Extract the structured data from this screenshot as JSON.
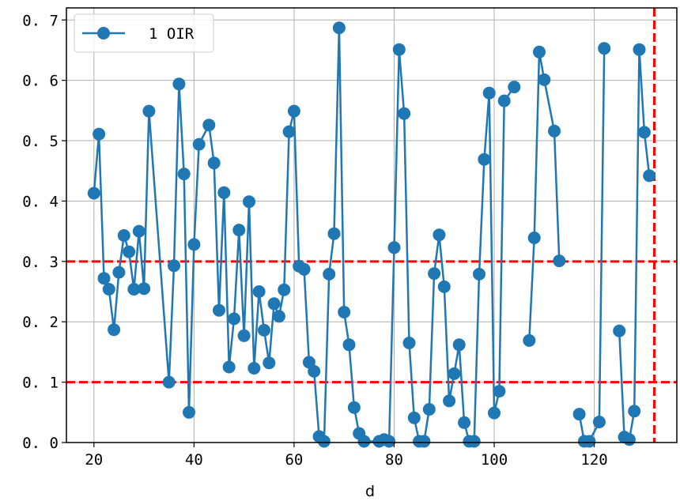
{
  "chart_data": {
    "type": "line",
    "xlabel": "d",
    "ylabel": "",
    "xlim": [
      14.5,
      136.5
    ],
    "ylim": [
      0,
      0.72
    ],
    "xticks": [
      20,
      40,
      60,
      80,
      100,
      120
    ],
    "yticks": [
      0.0,
      0.1,
      0.2,
      0.3,
      0.4,
      0.5,
      0.6,
      0.7
    ],
    "xtick_labels": [
      "20",
      "40",
      "60",
      "80",
      "100",
      "120"
    ],
    "ytick_labels": [
      "0. 0",
      "0. 1",
      "0. 2",
      "0. 3",
      "0. 4",
      "0. 5",
      "0. 6",
      "0. 7"
    ],
    "grid": true,
    "legend": {
      "placement": "top-left",
      "entries": [
        "1 OIR"
      ]
    },
    "colors": {
      "series": "#1f77b4",
      "reference": "#ff0000",
      "grid": "#b0b0b0"
    },
    "series": [
      {
        "name": "1 OIR",
        "segments": [
          {
            "x": [
              20,
              21,
              22,
              23,
              24,
              25,
              26,
              27,
              28,
              29,
              30,
              31,
              35,
              36,
              37,
              38,
              39,
              40,
              41,
              43,
              44,
              45,
              46,
              47,
              48,
              49,
              50,
              51,
              52,
              53,
              54,
              55,
              56,
              57,
              58,
              59,
              60,
              61,
              62,
              63,
              64,
              65,
              66,
              67,
              68,
              69,
              70,
              71,
              72,
              73,
              74,
              77,
              78,
              79,
              80,
              81,
              82,
              83,
              84,
              85,
              86,
              87,
              88,
              89,
              90,
              91,
              92,
              93,
              94,
              95,
              96,
              97,
              98,
              99,
              100,
              101,
              102,
              104
            ],
            "y": [
              0.413,
              0.511,
              0.272,
              0.254,
              0.187,
              0.282,
              0.343,
              0.316,
              0.254,
              0.35,
              0.255,
              0.549,
              0.1,
              0.293,
              0.594,
              0.445,
              0.05,
              0.328,
              0.494,
              0.526,
              0.463,
              0.219,
              0.414,
              0.125,
              0.205,
              0.352,
              0.177,
              0.399,
              0.123,
              0.25,
              0.186,
              0.132,
              0.23,
              0.209,
              0.253,
              0.515,
              0.549,
              0.292,
              0.287,
              0.133,
              0.118,
              0.01,
              0.002,
              0.279,
              0.346,
              0.687,
              0.216,
              0.162,
              0.058,
              0.015,
              0.002,
              0.002,
              0.005,
              0.002,
              0.323,
              0.651,
              0.545,
              0.165,
              0.041,
              0.002,
              0.002,
              0.055,
              0.28,
              0.344,
              0.258,
              0.069,
              0.114,
              0.162,
              0.033,
              0.002,
              0.002,
              0.279,
              0.469,
              0.579,
              0.049,
              0.085,
              0.566,
              0.589
            ]
          },
          {
            "x": [
              107,
              108,
              109,
              110,
              112,
              113
            ],
            "y": [
              0.169,
              0.339,
              0.647,
              0.601,
              0.516,
              0.301
            ]
          },
          {
            "x": [
              117,
              118,
              119,
              121,
              122
            ],
            "y": [
              0.047,
              0.002,
              0.002,
              0.034,
              0.653
            ]
          },
          {
            "x": [
              125,
              126,
              127,
              128,
              129,
              130,
              131
            ],
            "y": [
              0.185,
              0.009,
              0.005,
              0.052,
              0.651,
              0.514,
              0.442
            ]
          }
        ]
      }
    ],
    "reference_lines": [
      {
        "axis": "y",
        "value": 0.3,
        "style": "dashed",
        "color": "#ff0000"
      },
      {
        "axis": "y",
        "value": 0.1,
        "style": "dashed",
        "color": "#ff0000"
      },
      {
        "axis": "x",
        "value": 132,
        "style": "dashed",
        "color": "#ff0000"
      }
    ]
  }
}
